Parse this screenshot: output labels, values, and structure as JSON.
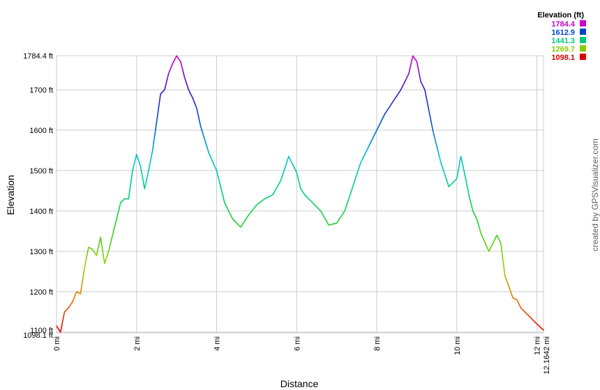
{
  "chart_data": {
    "type": "line",
    "xlabel": "Distance",
    "ylabel": "Elevation",
    "x_unit": "mi",
    "y_unit": "ft",
    "xlim": [
      0,
      12.1642
    ],
    "ylim": [
      1098.1,
      1784.4
    ],
    "x_ticks": [
      "0 mi",
      "2 mi",
      "4 mi",
      "6 mi",
      "8 mi",
      "10 mi",
      "12 mi",
      "12.1642 mi"
    ],
    "y_ticks": [
      "1098.1 ft",
      "1100 ft",
      "1200 ft",
      "1300 ft",
      "1400 ft",
      "1500 ft",
      "1600 ft",
      "1700 ft",
      "1784.4 ft"
    ],
    "grid": true,
    "x": [
      0,
      0.1,
      0.2,
      0.3,
      0.4,
      0.5,
      0.6,
      0.7,
      0.8,
      0.9,
      1.0,
      1.1,
      1.2,
      1.3,
      1.4,
      1.5,
      1.6,
      1.7,
      1.8,
      1.9,
      2.0,
      2.1,
      2.2,
      2.3,
      2.4,
      2.5,
      2.6,
      2.7,
      2.8,
      2.9,
      3.0,
      3.1,
      3.2,
      3.3,
      3.4,
      3.5,
      3.6,
      3.8,
      4.0,
      4.2,
      4.4,
      4.6,
      4.8,
      5.0,
      5.2,
      5.4,
      5.6,
      5.8,
      6.0,
      6.1,
      6.2,
      6.4,
      6.6,
      6.8,
      7.0,
      7.2,
      7.4,
      7.6,
      7.8,
      8.0,
      8.2,
      8.4,
      8.6,
      8.8,
      8.9,
      9.0,
      9.1,
      9.2,
      9.4,
      9.6,
      9.8,
      10.0,
      10.1,
      10.2,
      10.3,
      10.4,
      10.5,
      10.6,
      10.8,
      11.0,
      11.1,
      11.2,
      11.4,
      11.5,
      11.6,
      11.8,
      12.0,
      12.1642
    ],
    "values": [
      1115,
      1100,
      1150,
      1160,
      1175,
      1200,
      1195,
      1260,
      1310,
      1305,
      1290,
      1335,
      1270,
      1300,
      1340,
      1380,
      1420,
      1430,
      1430,
      1500,
      1540,
      1510,
      1455,
      1500,
      1550,
      1620,
      1690,
      1700,
      1740,
      1765,
      1784,
      1770,
      1730,
      1700,
      1680,
      1655,
      1610,
      1545,
      1500,
      1420,
      1380,
      1360,
      1390,
      1415,
      1430,
      1440,
      1475,
      1535,
      1495,
      1455,
      1440,
      1420,
      1400,
      1365,
      1370,
      1400,
      1460,
      1520,
      1560,
      1600,
      1640,
      1670,
      1700,
      1740,
      1784,
      1770,
      1720,
      1700,
      1600,
      1520,
      1460,
      1480,
      1535,
      1490,
      1440,
      1400,
      1380,
      1345,
      1300,
      1340,
      1320,
      1240,
      1185,
      1180,
      1160,
      1140,
      1120,
      1105
    ]
  },
  "legend": {
    "title": "Elevation (ft)",
    "items": [
      {
        "value": "1784.4",
        "color": "#cc00cc"
      },
      {
        "value": "1612.9",
        "color": "#0044cc"
      },
      {
        "value": "1441.3",
        "color": "#00cc77"
      },
      {
        "value": "1269.7",
        "color": "#88cc00"
      },
      {
        "value": "1098.1",
        "color": "#dd0000"
      }
    ]
  },
  "credit": "created by GPSVisualizer.com"
}
